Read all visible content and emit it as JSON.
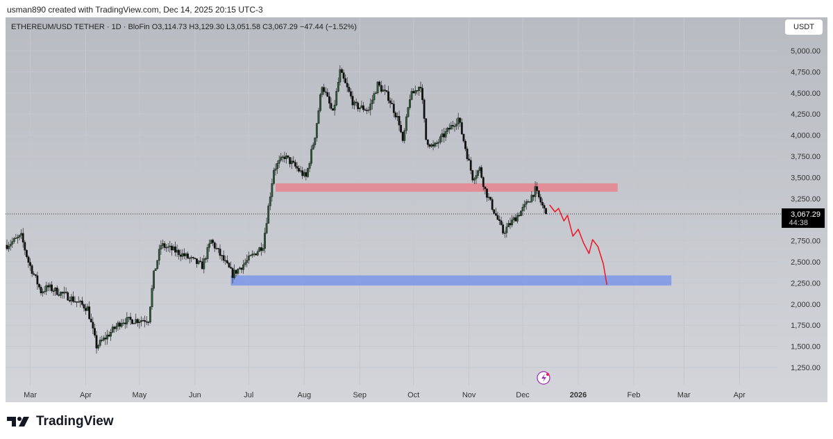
{
  "header": {
    "credit": "usman890 created with TradingView.com, Dec 14, 2025 20:15 UTC-3"
  },
  "legend": {
    "text": "ETHEREUM/USD TETHER · 1D · BloFin  O3,114.73  H3,129.30  L3,051.58  C3,067.29  −47.44 (−1.52%)"
  },
  "currency_button": "USDT",
  "footer": {
    "logo": "TradingView"
  },
  "colors": {
    "up": "#2f5a38",
    "down": "#111111",
    "resistance": "#e8848f",
    "support": "#7b96e6",
    "forecast": "#ee1c2a"
  },
  "chart_data": {
    "type": "candlestick",
    "title": "ETHEREUM/USD TETHER · 1D · BloFin",
    "ylim": [
      1100,
      5150
    ],
    "y_ticks": [
      "5,000.00",
      "4,750.00",
      "4,500.00",
      "4,250.00",
      "4,000.00",
      "3,750.00",
      "3,500.00",
      "3,250.00",
      "2,750.00",
      "2,500.00",
      "2,250.00",
      "2,000.00",
      "1,750.00",
      "1,500.00",
      "1,250.00"
    ],
    "y_tick_values": [
      5000,
      4750,
      4500,
      4250,
      4000,
      3750,
      3500,
      3250,
      2750,
      2500,
      2250,
      2000,
      1750,
      1500,
      1250
    ],
    "x_ticks": [
      {
        "label": "Mar",
        "date": "2025-03-01"
      },
      {
        "label": "Apr",
        "date": "2025-04-01"
      },
      {
        "label": "May",
        "date": "2025-05-01"
      },
      {
        "label": "Jun",
        "date": "2025-06-01"
      },
      {
        "label": "Jul",
        "date": "2025-07-01"
      },
      {
        "label": "Aug",
        "date": "2025-08-01"
      },
      {
        "label": "Sep",
        "date": "2025-09-01"
      },
      {
        "label": "Oct",
        "date": "2025-10-01"
      },
      {
        "label": "Nov",
        "date": "2025-11-01"
      },
      {
        "label": "Dec",
        "date": "2025-12-01"
      },
      {
        "label": "2026",
        "date": "2026-01-01",
        "bold": true
      },
      {
        "label": "Feb",
        "date": "2026-02-01"
      },
      {
        "label": "Mar",
        "date": "2026-03-01"
      },
      {
        "label": "Apr",
        "date": "2026-04-01"
      }
    ],
    "start_date": "2025-02-16",
    "close_anchors": [
      [
        "2025-02-16",
        2700
      ],
      [
        "2025-02-24",
        2800
      ],
      [
        "2025-02-28",
        2500
      ],
      [
        "2025-03-07",
        2150
      ],
      [
        "2025-03-11",
        2200
      ],
      [
        "2025-03-23",
        2080
      ],
      [
        "2025-04-02",
        1950
      ],
      [
        "2025-04-07",
        1500
      ],
      [
        "2025-04-11",
        1580
      ],
      [
        "2025-04-21",
        1800
      ],
      [
        "2025-05-06",
        1820
      ],
      [
        "2025-05-09",
        2350
      ],
      [
        "2025-05-13",
        2700
      ],
      [
        "2025-05-24",
        2600
      ],
      [
        "2025-06-05",
        2450
      ],
      [
        "2025-06-10",
        2750
      ],
      [
        "2025-06-16",
        2550
      ],
      [
        "2025-06-22",
        2350
      ],
      [
        "2025-07-02",
        2550
      ],
      [
        "2025-07-09",
        2700
      ],
      [
        "2025-07-15",
        3600
      ],
      [
        "2025-07-21",
        3750
      ],
      [
        "2025-08-02",
        3500
      ],
      [
        "2025-08-07",
        4000
      ],
      [
        "2025-08-11",
        4600
      ],
      [
        "2025-08-17",
        4250
      ],
      [
        "2025-08-21",
        4750
      ],
      [
        "2025-08-29",
        4350
      ],
      [
        "2025-09-06",
        4300
      ],
      [
        "2025-09-11",
        4600
      ],
      [
        "2025-09-17",
        4450
      ],
      [
        "2025-09-23",
        4150
      ],
      [
        "2025-09-25",
        3900
      ],
      [
        "2025-09-29",
        4450
      ],
      [
        "2025-10-05",
        4600
      ],
      [
        "2025-10-08",
        3950
      ],
      [
        "2025-10-12",
        3850
      ],
      [
        "2025-10-18",
        4000
      ],
      [
        "2025-10-26",
        4200
      ],
      [
        "2025-10-30",
        3850
      ],
      [
        "2025-11-03",
        3500
      ],
      [
        "2025-11-07",
        3600
      ],
      [
        "2025-11-10",
        3350
      ],
      [
        "2025-11-16",
        3050
      ],
      [
        "2025-11-20",
        2850
      ],
      [
        "2025-11-26",
        3000
      ],
      [
        "2025-12-02",
        3150
      ],
      [
        "2025-12-08",
        3350
      ],
      [
        "2025-12-14",
        3067.29
      ]
    ],
    "last_price": {
      "label": "3,067.29",
      "countdown": "44:38",
      "value": 3067.29
    },
    "zones": [
      {
        "name": "resistance",
        "from": "2025-07-16",
        "to": "2026-01-23",
        "low": 3330,
        "high": 3430
      },
      {
        "name": "support",
        "from": "2025-06-21",
        "to": "2026-02-22",
        "low": 2220,
        "high": 2340
      }
    ],
    "forecast": [
      [
        "2025-12-16",
        3174
      ],
      [
        "2025-12-19",
        3092
      ],
      [
        "2025-12-21",
        3133
      ],
      [
        "2025-12-24",
        2985
      ],
      [
        "2025-12-26",
        3051
      ],
      [
        "2025-12-29",
        2804
      ],
      [
        "2026-01-01",
        2886
      ],
      [
        "2026-01-04",
        2722
      ],
      [
        "2026-01-07",
        2599
      ],
      [
        "2026-01-09",
        2763
      ],
      [
        "2026-01-12",
        2681
      ],
      [
        "2026-01-15",
        2475
      ],
      [
        "2026-01-17",
        2229
      ]
    ]
  }
}
